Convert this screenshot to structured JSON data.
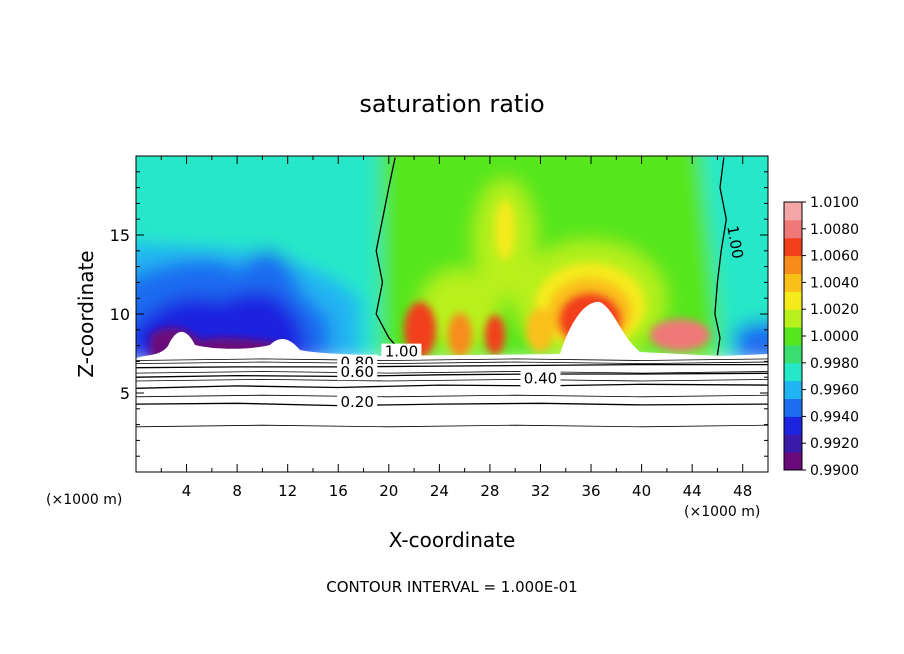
{
  "chart_data": {
    "type": "heatmap",
    "title": "saturation ratio",
    "xlabel": "X-coordinate",
    "ylabel": "Z-coordinate",
    "x_unit_left": "(×1000 m)",
    "x_unit_right": "(×1000 m)",
    "xlim": [
      0,
      50
    ],
    "ylim": [
      0,
      20
    ],
    "x_ticks": [
      4,
      8,
      12,
      16,
      20,
      24,
      28,
      32,
      36,
      40,
      44,
      48
    ],
    "y_ticks": [
      5,
      10,
      15
    ],
    "grid": false,
    "legend": "right",
    "footer": "CONTOUR INTERVAL = 1.000E-01",
    "colorbar": {
      "labels": [
        "1.0100",
        "1.0080",
        "1.0060",
        "1.0040",
        "1.0020",
        "1.0000",
        "0.9980",
        "0.9960",
        "0.9940",
        "0.9920",
        "0.9900"
      ],
      "min": 0.99,
      "max": 1.01,
      "colors": [
        "#6a0a7a",
        "#3a1aa8",
        "#1c24e0",
        "#1e6cf0",
        "#20b4f2",
        "#25e8c8",
        "#3ade70",
        "#56e61e",
        "#b8f01e",
        "#f4ea1c",
        "#fac01a",
        "#f88c1a",
        "#f2401a",
        "#f07878",
        "#f4a6a6"
      ]
    },
    "contour_labels": [
      {
        "text": "1.00",
        "x": 21.0,
        "z": 7.3
      },
      {
        "text": "1.00",
        "x": 47.0,
        "z": 14.5
      },
      {
        "text": "0.80",
        "x": 17.5,
        "z": 6.6
      },
      {
        "text": "0.60",
        "x": 17.5,
        "z": 6.0
      },
      {
        "text": "0.40",
        "x": 32.0,
        "z": 5.6
      },
      {
        "text": "0.20",
        "x": 17.5,
        "z": 4.1
      }
    ],
    "contours": [
      {
        "level": 0.2,
        "points": [
          [
            0,
            4.3
          ],
          [
            8,
            4.35
          ],
          [
            16,
            4.2
          ],
          [
            24,
            4.3
          ],
          [
            32,
            4.35
          ],
          [
            40,
            4.25
          ],
          [
            50,
            4.3
          ]
        ]
      },
      {
        "level": 0.4,
        "points": [
          [
            0,
            5.3
          ],
          [
            8,
            5.45
          ],
          [
            16,
            5.35
          ],
          [
            24,
            5.5
          ],
          [
            32,
            5.45
          ],
          [
            40,
            5.55
          ],
          [
            50,
            5.5
          ]
        ]
      },
      {
        "level": 0.6,
        "points": [
          [
            0,
            6.0
          ],
          [
            8,
            6.1
          ],
          [
            16,
            6.05
          ],
          [
            24,
            6.15
          ],
          [
            32,
            6.2
          ],
          [
            40,
            6.2
          ],
          [
            50,
            6.25
          ]
        ]
      },
      {
        "level": 0.8,
        "points": [
          [
            0,
            6.6
          ],
          [
            8,
            6.65
          ],
          [
            16,
            6.65
          ],
          [
            24,
            6.7
          ],
          [
            32,
            6.75
          ],
          [
            40,
            6.8
          ],
          [
            50,
            6.8
          ]
        ]
      },
      {
        "level": 1.0,
        "points": [
          [
            20.5,
            19.9
          ],
          [
            20.0,
            18.0
          ],
          [
            19.5,
            16.0
          ],
          [
            19.0,
            14.0
          ],
          [
            19.5,
            12.0
          ],
          [
            19.0,
            10.0
          ],
          [
            20.0,
            8.5
          ],
          [
            21.0,
            7.6
          ],
          [
            22.5,
            7.3
          ]
        ]
      },
      {
        "level": 1.0,
        "points": [
          [
            46.5,
            19.9
          ],
          [
            46.2,
            18.0
          ],
          [
            46.7,
            16.0
          ],
          [
            46.3,
            14.0
          ],
          [
            46.0,
            12.0
          ],
          [
            45.8,
            10.0
          ],
          [
            46.2,
            8.5
          ],
          [
            46.0,
            7.4
          ]
        ]
      }
    ]
  }
}
